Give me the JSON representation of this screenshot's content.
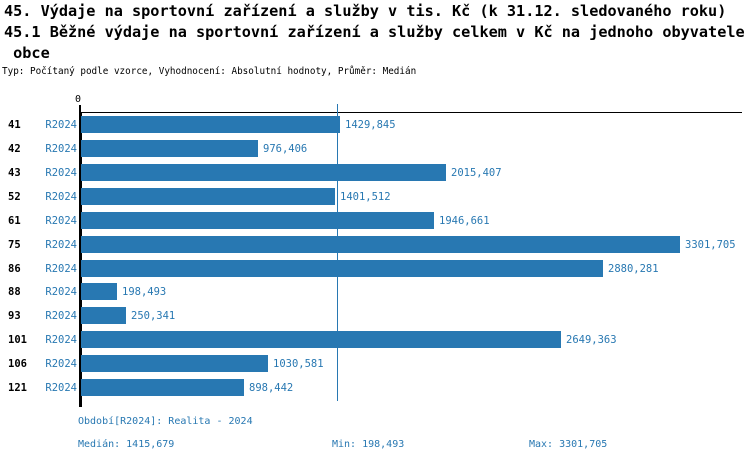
{
  "title": {
    "line1": "45. Výdaje na sportovní zařízení a služby v tis. Kč (k 31.12. sledovaného roku)",
    "line2": "45.1 Běžné výdaje na sportovní zařízení a služby celkem v Kč na jednoho obyvatele",
    "line3": " obce"
  },
  "meta_line": "Typ: Počítaný podle vzorce, Vyhodnocení: Absolutní hodnoty, Průměr: Medián",
  "colors": {
    "bar_blue": "#2878b2",
    "text_blue": "#2878b2",
    "axis_black": "#000000"
  },
  "chart_data": {
    "type": "bar",
    "orientation": "horizontal",
    "title": "45. Výdaje na sportovní zařízení a služby v tis. Kč (k 31.12. sledovaného roku)",
    "subtitle": "45.1 Běžné výdaje na sportovní zařízení a služby celkem v Kč na jednoho obyvatele obce",
    "categories": [
      "41",
      "42",
      "43",
      "52",
      "61",
      "75",
      "86",
      "88",
      "93",
      "101",
      "106",
      "121"
    ],
    "series_label": "R2024",
    "values": [
      1429.845,
      976.406,
      2015.407,
      1401.512,
      1946.661,
      3301.705,
      2880.281,
      198.493,
      250.341,
      2649.363,
      1030.581,
      898.442
    ],
    "value_labels": [
      "1429,845",
      "976,406",
      "2015,407",
      "1401,512",
      "1946,661",
      "3301,705",
      "2880,281",
      "198,493",
      "250,341",
      "2649,363",
      "1030,581",
      "898,442"
    ],
    "xlim": [
      0,
      3645
    ],
    "x_tick_labels": [
      "0"
    ],
    "zero_label": "0",
    "median_line_value": 1415.679,
    "stats": {
      "median": 1415.679,
      "min": 198.493,
      "max": 3301.705
    },
    "bar_color": "#2878b2",
    "grid": false,
    "legend": false
  },
  "footer": {
    "period": "Období[R2024]: Realita - 2024",
    "median": "Medián: 1415,679",
    "min": "Min: 198,493",
    "max": "Max: 3301,705"
  }
}
